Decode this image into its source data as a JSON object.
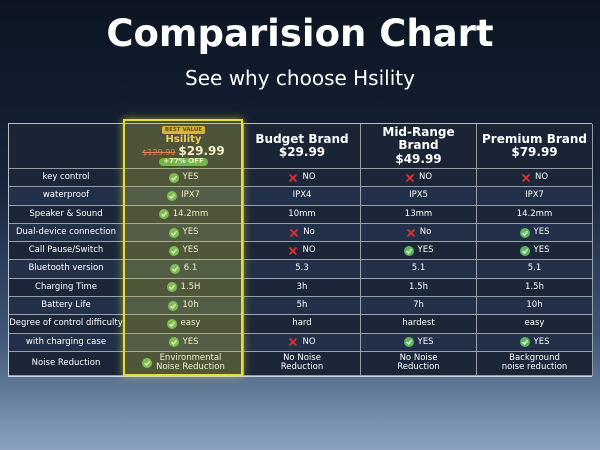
{
  "header": {
    "title": "Comparision Chart",
    "subtitle": "See why choose Hsility"
  },
  "table": {
    "columns": [
      {
        "badge": "BEST VALUE",
        "name": "Hsility",
        "old_price": "$129.99",
        "price": "$29.99",
        "discount": "+77% OFF",
        "highlight": true
      },
      {
        "name": "Budget Brand",
        "price": "$29.99"
      },
      {
        "name": "Mid-Range Brand",
        "price": "$49.99"
      },
      {
        "name": "Premium Brand",
        "price": "$79.99"
      }
    ],
    "rows": [
      {
        "label": "key control",
        "cells": [
          {
            "text": "YES",
            "icon": "check"
          },
          {
            "text": "NO",
            "icon": "cross"
          },
          {
            "text": "NO",
            "icon": "cross"
          },
          {
            "text": "NO",
            "icon": "cross"
          }
        ]
      },
      {
        "label": "waterproof",
        "cells": [
          {
            "text": "IPX7",
            "icon": "check"
          },
          {
            "text": "IPX4"
          },
          {
            "text": "IPX5"
          },
          {
            "text": "IPX7"
          }
        ]
      },
      {
        "label": "Speaker & Sound",
        "cells": [
          {
            "text": "14.2mm",
            "icon": "check"
          },
          {
            "text": "10mm"
          },
          {
            "text": "13mm"
          },
          {
            "text": "14.2mm"
          }
        ]
      },
      {
        "label": "Dual-device connection",
        "cells": [
          {
            "text": "YES",
            "icon": "check"
          },
          {
            "text": "No",
            "icon": "cross"
          },
          {
            "text": "No",
            "icon": "cross"
          },
          {
            "text": "YES",
            "icon": "check"
          }
        ]
      },
      {
        "label": "Call Pause/Switch",
        "cells": [
          {
            "text": "YES",
            "icon": "check"
          },
          {
            "text": "NO",
            "icon": "cross"
          },
          {
            "text": "YES",
            "icon": "check"
          },
          {
            "text": "YES",
            "icon": "check"
          }
        ]
      },
      {
        "label": "Bluetooth version",
        "cells": [
          {
            "text": "6.1",
            "icon": "check"
          },
          {
            "text": "5.3"
          },
          {
            "text": "5.1"
          },
          {
            "text": "5.1"
          }
        ]
      },
      {
        "label": "Charging Time",
        "cells": [
          {
            "text": "1.5H",
            "icon": "check"
          },
          {
            "text": "3h"
          },
          {
            "text": "1.5h"
          },
          {
            "text": "1.5h"
          }
        ]
      },
      {
        "label": "Battery Life",
        "cells": [
          {
            "text": "10h",
            "icon": "check"
          },
          {
            "text": "5h"
          },
          {
            "text": "7h"
          },
          {
            "text": "10h"
          }
        ]
      },
      {
        "label": "Degree of control difficulty",
        "cells": [
          {
            "text": "easy",
            "icon": "check"
          },
          {
            "text": "hard"
          },
          {
            "text": "hardest"
          },
          {
            "text": "easy"
          }
        ]
      },
      {
        "label": "with charging case",
        "cells": [
          {
            "text": "YES",
            "icon": "check"
          },
          {
            "text": "NO",
            "icon": "cross"
          },
          {
            "text": "YES",
            "icon": "check"
          },
          {
            "text": "YES",
            "icon": "check"
          }
        ]
      },
      {
        "label": "Noise Reduction",
        "cells": [
          {
            "text": "Environmental\nNoise Reduction",
            "icon": "check"
          },
          {
            "text": "No Noise\nReduction"
          },
          {
            "text": "No Noise\nReduction"
          },
          {
            "text": "Background\nnoise reduction"
          }
        ]
      }
    ]
  }
}
